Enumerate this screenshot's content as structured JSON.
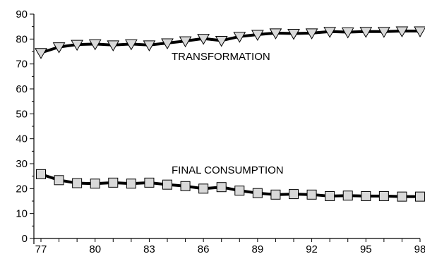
{
  "chart_data": {
    "type": "line",
    "title": "",
    "xlabel": "",
    "ylabel": "",
    "ylim": [
      0,
      90
    ],
    "xlim": [
      77,
      98
    ],
    "grid": false,
    "x": [
      77,
      78,
      79,
      80,
      81,
      82,
      83,
      84,
      85,
      86,
      87,
      88,
      89,
      90,
      91,
      92,
      93,
      94,
      95,
      96,
      97,
      98
    ],
    "x_tick_labels": [
      "77",
      "80",
      "83",
      "86",
      "89",
      "92",
      "95",
      "98"
    ],
    "y_tick_labels": [
      "0",
      "10",
      "20",
      "30",
      "40",
      "50",
      "60",
      "70",
      "80",
      "90"
    ],
    "series": [
      {
        "name": "TRANSFORMATION",
        "marker": "triangle-down",
        "marker_fill": "#d9d9d9",
        "line_color": "#000000",
        "values": [
          74.5,
          76.8,
          77.8,
          78.0,
          77.6,
          78.0,
          77.6,
          78.4,
          79.2,
          80.2,
          79.4,
          81.0,
          81.8,
          82.4,
          82.2,
          82.4,
          83.0,
          82.8,
          83.0,
          83.0,
          83.2,
          83.2
        ]
      },
      {
        "name": "FINAL CONSUMPTION",
        "marker": "square",
        "marker_fill": "#d9d9d9",
        "line_color": "#000000",
        "values": [
          25.8,
          23.4,
          22.2,
          22.0,
          22.4,
          22.0,
          22.4,
          21.6,
          21.0,
          20.0,
          20.6,
          19.2,
          18.2,
          17.6,
          17.8,
          17.6,
          17.0,
          17.2,
          17.0,
          17.0,
          16.8,
          16.8
        ]
      }
    ]
  }
}
